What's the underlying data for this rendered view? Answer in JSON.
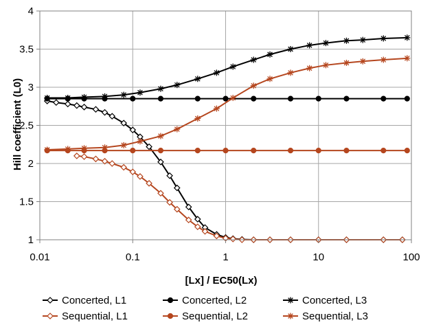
{
  "chart_data": {
    "type": "line",
    "title": "",
    "xlabel": "[Lx] / EC50(Lx)",
    "ylabel": "Hill coefficient (L0)",
    "xscale": "log",
    "xlim": [
      0.01,
      100
    ],
    "ylim": [
      1,
      4
    ],
    "x_ticks": [
      0.01,
      0.1,
      1,
      10,
      100
    ],
    "x_tick_labels": [
      "0.01",
      "0.1",
      "1",
      "10",
      "100"
    ],
    "y_ticks": [
      1,
      1.5,
      2,
      2.5,
      3,
      3.5,
      4
    ],
    "y_tick_labels": [
      "1",
      "1.5",
      "2",
      "2.5",
      "3",
      "3.5",
      "4"
    ],
    "grid": true,
    "legend_position": "bottom",
    "series": [
      {
        "name": "Concerted, L1",
        "color": "#000000",
        "marker": "diamond-open",
        "x": [
          0.012,
          0.015,
          0.02,
          0.025,
          0.03,
          0.04,
          0.05,
          0.06,
          0.08,
          0.1,
          0.12,
          0.15,
          0.2,
          0.25,
          0.3,
          0.4,
          0.5,
          0.6,
          0.8,
          1.0,
          1.2,
          1.5,
          2.0,
          3.0,
          5.0,
          10.0,
          20.0,
          50.0,
          80.0
        ],
        "y": [
          2.82,
          2.8,
          2.78,
          2.76,
          2.74,
          2.71,
          2.67,
          2.62,
          2.53,
          2.44,
          2.35,
          2.22,
          2.02,
          1.84,
          1.68,
          1.43,
          1.27,
          1.16,
          1.07,
          1.03,
          1.015,
          1.005,
          1.0,
          1.0,
          1.0,
          1.0,
          1.0,
          1.0,
          1.0
        ]
      },
      {
        "name": "Concerted, L2",
        "color": "#000000",
        "marker": "circle-filled",
        "x": [
          0.012,
          0.02,
          0.03,
          0.05,
          0.1,
          0.2,
          0.5,
          1.0,
          2.0,
          5.0,
          10.0,
          20.0,
          50.0,
          90.0
        ],
        "y": [
          2.85,
          2.85,
          2.85,
          2.85,
          2.85,
          2.85,
          2.85,
          2.85,
          2.85,
          2.85,
          2.85,
          2.85,
          2.85,
          2.85
        ]
      },
      {
        "name": "Concerted, L3",
        "color": "#000000",
        "marker": "asterisk",
        "x": [
          0.012,
          0.02,
          0.03,
          0.05,
          0.08,
          0.12,
          0.2,
          0.3,
          0.5,
          0.8,
          1.2,
          2.0,
          3.0,
          5.0,
          8.0,
          12.0,
          20.0,
          30.0,
          50.0,
          90.0
        ],
        "y": [
          2.86,
          2.86,
          2.87,
          2.88,
          2.9,
          2.93,
          2.98,
          3.03,
          3.11,
          3.19,
          3.27,
          3.36,
          3.43,
          3.5,
          3.55,
          3.58,
          3.61,
          3.62,
          3.64,
          3.65
        ]
      },
      {
        "name": "Sequential, L1",
        "color": "#b5461e",
        "marker": "diamond-open",
        "x": [
          0.025,
          0.03,
          0.04,
          0.05,
          0.06,
          0.08,
          0.1,
          0.12,
          0.15,
          0.2,
          0.25,
          0.3,
          0.4,
          0.5,
          0.6,
          0.8,
          1.0,
          1.2,
          1.5,
          2.0,
          3.0,
          5.0,
          10.0,
          20.0,
          50.0,
          80.0
        ],
        "y": [
          2.1,
          2.09,
          2.06,
          2.03,
          2.0,
          1.95,
          1.89,
          1.83,
          1.74,
          1.61,
          1.49,
          1.4,
          1.26,
          1.17,
          1.11,
          1.05,
          1.02,
          1.01,
          1.0,
          1.0,
          1.0,
          1.0,
          1.0,
          1.0,
          1.0,
          1.0
        ]
      },
      {
        "name": "Sequential, L2",
        "color": "#b5461e",
        "marker": "circle-filled",
        "x": [
          0.012,
          0.02,
          0.03,
          0.05,
          0.1,
          0.2,
          0.5,
          1.0,
          2.0,
          5.0,
          10.0,
          20.0,
          50.0,
          90.0
        ],
        "y": [
          2.17,
          2.17,
          2.17,
          2.17,
          2.17,
          2.17,
          2.17,
          2.17,
          2.17,
          2.17,
          2.17,
          2.17,
          2.17,
          2.17
        ]
      },
      {
        "name": "Sequential, L3",
        "color": "#b5461e",
        "marker": "asterisk",
        "x": [
          0.012,
          0.02,
          0.03,
          0.05,
          0.08,
          0.12,
          0.2,
          0.3,
          0.5,
          0.8,
          1.2,
          2.0,
          3.0,
          5.0,
          8.0,
          12.0,
          20.0,
          30.0,
          50.0,
          90.0
        ],
        "y": [
          2.18,
          2.19,
          2.2,
          2.21,
          2.24,
          2.29,
          2.36,
          2.45,
          2.59,
          2.72,
          2.86,
          3.02,
          3.11,
          3.19,
          3.25,
          3.29,
          3.32,
          3.34,
          3.36,
          3.38
        ]
      }
    ]
  }
}
